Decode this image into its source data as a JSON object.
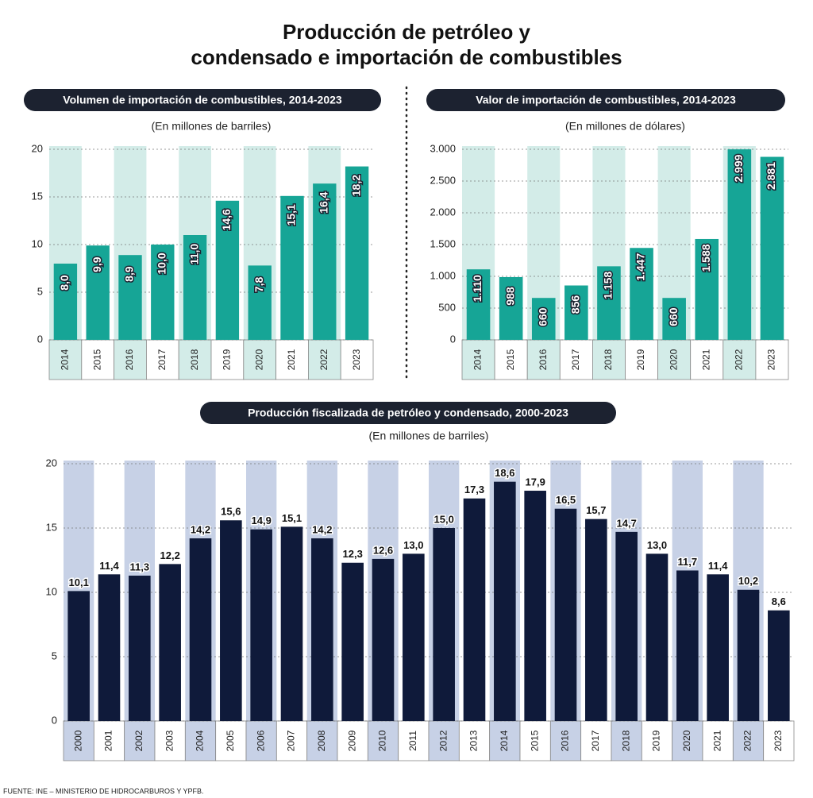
{
  "title": [
    "Producción de petróleo y",
    "condensado e importación de combustibles"
  ],
  "source": "FUENTE: INE – MINISTERIO DE HIDROCARBUROS Y YPFB.",
  "chart_data": [
    {
      "type": "bar",
      "title": "Volumen de importación de combustibles, 2014-2023",
      "subtitle": "(En millones de barriles)",
      "categories": [
        "2014",
        "2015",
        "2016",
        "2017",
        "2018",
        "2019",
        "2020",
        "2021",
        "2022",
        "2023"
      ],
      "values": [
        8.0,
        9.9,
        8.9,
        10.0,
        11.0,
        14.6,
        7.8,
        15.1,
        16.4,
        18.2
      ],
      "value_labels": [
        "8,0",
        "9,9",
        "8,9",
        "10,0",
        "11,0",
        "14,6",
        "7,8",
        "15,1",
        "16,4",
        "18,2"
      ],
      "color": "#16a596",
      "ylim": [
        0,
        20
      ],
      "yticks": [
        0,
        5,
        10,
        15,
        20
      ],
      "grid": true
    },
    {
      "type": "bar",
      "title": "Valor de importación de combustibles, 2014-2023",
      "subtitle": "(En millones de dólares)",
      "categories": [
        "2014",
        "2015",
        "2016",
        "2017",
        "2018",
        "2019",
        "2020",
        "2021",
        "2022",
        "2023"
      ],
      "values": [
        1110,
        988,
        660,
        856,
        1158,
        1447,
        660,
        1588,
        2999,
        2881
      ],
      "value_labels": [
        "1.110",
        "988",
        "660",
        "856",
        "1.158",
        "1.447",
        "660",
        "1.588",
        "2.999",
        "2.881"
      ],
      "color": "#16a596",
      "ylim": [
        0,
        3000
      ],
      "yticks": [
        0,
        500,
        {
          "value": 1000,
          "label": "1.000"
        },
        {
          "value": 1500,
          "label": "1.500"
        },
        {
          "value": 2000,
          "label": "2.000"
        },
        {
          "value": 2500,
          "label": "2.500"
        },
        {
          "value": 3000,
          "label": "3.000"
        }
      ],
      "grid": true
    },
    {
      "type": "bar",
      "title": "Producción fiscalizada de petróleo y condensado, 2000-2023",
      "subtitle": "(En millones de barriles)",
      "categories": [
        "2000",
        "2001",
        "2002",
        "2003",
        "2004",
        "2005",
        "2006",
        "2007",
        "2008",
        "2009",
        "2010",
        "2011",
        "2012",
        "2013",
        "2014",
        "2015",
        "2016",
        "2017",
        "2018",
        "2019",
        "2020",
        "2021",
        "2022",
        "2023"
      ],
      "values": [
        10.1,
        11.4,
        11.3,
        12.2,
        14.2,
        15.6,
        14.9,
        15.1,
        14.2,
        12.3,
        12.6,
        13.0,
        15.0,
        17.3,
        18.6,
        17.9,
        16.5,
        15.7,
        14.7,
        13.0,
        11.7,
        11.4,
        10.2,
        8.6
      ],
      "value_labels": [
        "10,1",
        "11,4",
        "11,3",
        "12,2",
        "14,2",
        "15,6",
        "14,9",
        "15,1",
        "14,2",
        "12,3",
        "12,6",
        "13,0",
        "15,0",
        "17,3",
        "18,6",
        "17,9",
        "16,5",
        "15,7",
        "14,7",
        "13,0",
        "11,7",
        "11,4",
        "10,2",
        "8,6"
      ],
      "color": "#0f1a3a",
      "ylim": [
        0,
        20
      ],
      "yticks": [
        0,
        5,
        10,
        15,
        20
      ],
      "grid": true
    }
  ]
}
